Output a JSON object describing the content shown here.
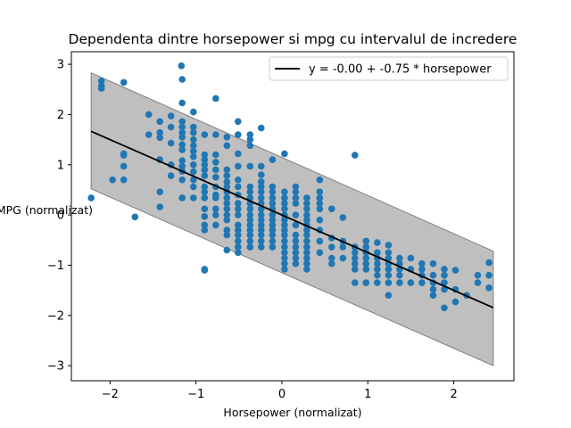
{
  "chart_data": {
    "type": "scatter",
    "title": "Dependenta dintre horsepower si mpg cu intervalul de incredere",
    "xlabel": "Horsepower (normalizat)",
    "ylabel": "MPG (normalizat)",
    "xlim": [
      -2.45,
      2.7
    ],
    "ylim": [
      -3.3,
      3.25
    ],
    "xticks": [
      -2,
      -1,
      0,
      1,
      2
    ],
    "yticks": [
      -3,
      -2,
      -1,
      0,
      1,
      2,
      3
    ],
    "xtick_labels": [
      "−2",
      "−1",
      "0",
      "1",
      "2"
    ],
    "ytick_labels": [
      "−3",
      "−2",
      "−1",
      "0",
      "1",
      "2",
      "3"
    ],
    "grid": false,
    "legend": {
      "placement": "top-right",
      "label": "y = -0.00 + -0.75 * horsepower"
    },
    "colors": {
      "points": "#1f77b4",
      "line": "#000000",
      "band": "#808080"
    },
    "regression": {
      "intercept": 0.0,
      "slope": -0.75,
      "x_range": [
        -2.22,
        2.46
      ]
    },
    "confidence_band": {
      "x": [
        -2.22,
        2.46
      ],
      "upper": [
        2.83,
        -0.72
      ],
      "lower": [
        0.52,
        -3.0
      ]
    },
    "points": [
      [
        -2.22,
        0.34
      ],
      [
        -2.1,
        2.67
      ],
      [
        -2.1,
        2.57
      ],
      [
        -2.1,
        2.52
      ],
      [
        -1.97,
        0.7
      ],
      [
        -1.84,
        2.64
      ],
      [
        -1.84,
        1.22
      ],
      [
        -1.84,
        1.19
      ],
      [
        -1.84,
        0.97
      ],
      [
        -1.84,
        0.7
      ],
      [
        -1.71,
        -0.04
      ],
      [
        -1.55,
        2.0
      ],
      [
        -1.55,
        1.6
      ],
      [
        -1.42,
        1.86
      ],
      [
        -1.42,
        1.64
      ],
      [
        -1.42,
        1.54
      ],
      [
        -1.42,
        1.1
      ],
      [
        -1.42,
        0.46
      ],
      [
        -1.42,
        0.16
      ],
      [
        -1.29,
        1.97
      ],
      [
        -1.29,
        1.75
      ],
      [
        -1.29,
        1.43
      ],
      [
        -1.29,
        1.0
      ],
      [
        -1.29,
        0.78
      ],
      [
        -1.17,
        2.97
      ],
      [
        -1.16,
        2.7
      ],
      [
        -1.16,
        2.23
      ],
      [
        -1.16,
        1.86
      ],
      [
        -1.16,
        1.75
      ],
      [
        -1.16,
        1.64
      ],
      [
        -1.16,
        1.55
      ],
      [
        -1.16,
        1.4
      ],
      [
        -1.16,
        1.3
      ],
      [
        -1.16,
        1.08
      ],
      [
        -1.16,
        0.97
      ],
      [
        -1.16,
        0.87
      ],
      [
        -1.16,
        0.7
      ],
      [
        -1.16,
        0.34
      ],
      [
        -1.03,
        2.05
      ],
      [
        -1.03,
        1.75
      ],
      [
        -1.03,
        1.64
      ],
      [
        -1.03,
        1.5
      ],
      [
        -1.03,
        1.38
      ],
      [
        -1.03,
        1.27
      ],
      [
        -1.03,
        1.16
      ],
      [
        -1.03,
        1.0
      ],
      [
        -1.03,
        0.86
      ],
      [
        -1.03,
        0.7
      ],
      [
        -1.03,
        0.56
      ],
      [
        -1.03,
        0.34
      ],
      [
        -0.9,
        1.6
      ],
      [
        -0.9,
        1.2
      ],
      [
        -0.9,
        1.1
      ],
      [
        -0.9,
        1.0
      ],
      [
        -0.9,
        0.9
      ],
      [
        -0.9,
        0.78
      ],
      [
        -0.9,
        0.56
      ],
      [
        -0.9,
        0.46
      ],
      [
        -0.9,
        0.34
      ],
      [
        -0.9,
        0.12
      ],
      [
        -0.9,
        -0.03
      ],
      [
        -0.9,
        -0.2
      ],
      [
        -0.9,
        -0.3
      ],
      [
        -0.9,
        -1.1
      ],
      [
        -0.9,
        -1.08
      ],
      [
        -0.77,
        2.32
      ],
      [
        -0.77,
        1.6
      ],
      [
        -0.77,
        1.2
      ],
      [
        -0.77,
        1.05
      ],
      [
        -0.77,
        0.9
      ],
      [
        -0.77,
        0.75
      ],
      [
        -0.77,
        0.56
      ],
      [
        -0.77,
        0.4
      ],
      [
        -0.77,
        0.34
      ],
      [
        -0.77,
        0.12
      ],
      [
        -0.77,
        0.0
      ],
      [
        -0.77,
        -0.2
      ],
      [
        -0.64,
        1.55
      ],
      [
        -0.64,
        1.38
      ],
      [
        -0.64,
        0.9
      ],
      [
        -0.64,
        0.78
      ],
      [
        -0.64,
        0.66
      ],
      [
        -0.64,
        0.56
      ],
      [
        -0.64,
        0.46
      ],
      [
        -0.64,
        0.34
      ],
      [
        -0.64,
        0.23
      ],
      [
        -0.64,
        0.12
      ],
      [
        -0.64,
        0.0
      ],
      [
        -0.64,
        -0.1
      ],
      [
        -0.64,
        -0.3
      ],
      [
        -0.64,
        -0.4
      ],
      [
        -0.64,
        -0.7
      ],
      [
        -0.51,
        1.86
      ],
      [
        -0.51,
        1.6
      ],
      [
        -0.51,
        1.22
      ],
      [
        -0.51,
        0.97
      ],
      [
        -0.51,
        0.7
      ],
      [
        -0.51,
        0.56
      ],
      [
        -0.51,
        0.4
      ],
      [
        -0.51,
        0.23
      ],
      [
        -0.51,
        0.12
      ],
      [
        -0.51,
        0.0
      ],
      [
        -0.51,
        -0.2
      ],
      [
        -0.51,
        -0.3
      ],
      [
        -0.51,
        -0.4
      ],
      [
        -0.51,
        -0.52
      ],
      [
        -0.51,
        -0.64
      ],
      [
        -0.51,
        -0.75
      ],
      [
        -0.37,
        1.6
      ],
      [
        -0.37,
        1.5
      ],
      [
        -0.37,
        1.38
      ],
      [
        -0.37,
        0.97
      ],
      [
        -0.37,
        0.56
      ],
      [
        -0.37,
        0.46
      ],
      [
        -0.37,
        0.34
      ],
      [
        -0.37,
        0.23
      ],
      [
        -0.37,
        0.12
      ],
      [
        -0.37,
        0.0
      ],
      [
        -0.37,
        -0.1
      ],
      [
        -0.37,
        -0.2
      ],
      [
        -0.37,
        -0.3
      ],
      [
        -0.37,
        -0.4
      ],
      [
        -0.37,
        -0.52
      ],
      [
        -0.37,
        -0.64
      ],
      [
        -0.24,
        1.73
      ],
      [
        -0.24,
        0.97
      ],
      [
        -0.24,
        0.8
      ],
      [
        -0.24,
        0.66
      ],
      [
        -0.24,
        0.56
      ],
      [
        -0.24,
        0.46
      ],
      [
        -0.24,
        0.34
      ],
      [
        -0.24,
        0.23
      ],
      [
        -0.24,
        0.12
      ],
      [
        -0.24,
        0.0
      ],
      [
        -0.24,
        -0.1
      ],
      [
        -0.24,
        -0.2
      ],
      [
        -0.24,
        -0.3
      ],
      [
        -0.24,
        -0.4
      ],
      [
        -0.24,
        -0.52
      ],
      [
        -0.24,
        -0.64
      ],
      [
        -0.11,
        1.1
      ],
      [
        -0.11,
        0.56
      ],
      [
        -0.11,
        0.46
      ],
      [
        -0.11,
        0.34
      ],
      [
        -0.11,
        0.23
      ],
      [
        -0.11,
        0.12
      ],
      [
        -0.11,
        0.0
      ],
      [
        -0.11,
        -0.1
      ],
      [
        -0.11,
        -0.2
      ],
      [
        -0.11,
        -0.3
      ],
      [
        -0.11,
        -0.4
      ],
      [
        -0.11,
        -0.52
      ],
      [
        -0.11,
        -0.64
      ],
      [
        0.03,
        1.22
      ],
      [
        0.03,
        0.46
      ],
      [
        0.03,
        0.34
      ],
      [
        0.03,
        0.23
      ],
      [
        0.03,
        0.12
      ],
      [
        0.03,
        0.0
      ],
      [
        0.03,
        -0.1
      ],
      [
        0.03,
        -0.2
      ],
      [
        0.03,
        -0.3
      ],
      [
        0.03,
        -0.4
      ],
      [
        0.03,
        -0.52
      ],
      [
        0.03,
        -0.64
      ],
      [
        0.03,
        -0.75
      ],
      [
        0.03,
        -0.86
      ],
      [
        0.03,
        -0.97
      ],
      [
        0.03,
        -1.08
      ],
      [
        0.16,
        0.56
      ],
      [
        0.16,
        0.46
      ],
      [
        0.16,
        0.34
      ],
      [
        0.16,
        0.23
      ],
      [
        0.16,
        0.0
      ],
      [
        0.16,
        -0.2
      ],
      [
        0.16,
        -0.4
      ],
      [
        0.16,
        -0.52
      ],
      [
        0.16,
        -0.64
      ],
      [
        0.16,
        -0.75
      ],
      [
        0.16,
        -0.86
      ],
      [
        0.16,
        -0.97
      ],
      [
        0.29,
        0.34
      ],
      [
        0.29,
        0.23
      ],
      [
        0.29,
        0.12
      ],
      [
        0.29,
        0.0
      ],
      [
        0.29,
        -0.1
      ],
      [
        0.29,
        -0.2
      ],
      [
        0.29,
        -0.3
      ],
      [
        0.29,
        -0.4
      ],
      [
        0.29,
        -0.52
      ],
      [
        0.29,
        -0.64
      ],
      [
        0.29,
        -0.75
      ],
      [
        0.29,
        -0.86
      ],
      [
        0.29,
        -0.97
      ],
      [
        0.29,
        -1.08
      ],
      [
        0.44,
        0.7
      ],
      [
        0.44,
        0.46
      ],
      [
        0.44,
        0.34
      ],
      [
        0.44,
        0.23
      ],
      [
        0.44,
        0.12
      ],
      [
        0.44,
        -0.1
      ],
      [
        0.44,
        -0.3
      ],
      [
        0.44,
        -0.52
      ],
      [
        0.44,
        -0.75
      ],
      [
        0.58,
        0.12
      ],
      [
        0.58,
        -0.46
      ],
      [
        0.58,
        -0.64
      ],
      [
        0.58,
        -0.86
      ],
      [
        0.58,
        -0.97
      ],
      [
        0.71,
        -0.05
      ],
      [
        0.71,
        -0.52
      ],
      [
        0.71,
        -0.64
      ],
      [
        0.71,
        -0.86
      ],
      [
        0.85,
        1.19
      ],
      [
        0.85,
        -0.64
      ],
      [
        0.85,
        -0.75
      ],
      [
        0.85,
        -0.86
      ],
      [
        0.85,
        -0.97
      ],
      [
        0.85,
        -1.08
      ],
      [
        0.85,
        -1.35
      ],
      [
        0.98,
        -0.52
      ],
      [
        0.98,
        -0.64
      ],
      [
        0.98,
        -0.75
      ],
      [
        0.98,
        -0.86
      ],
      [
        0.98,
        -0.97
      ],
      [
        0.98,
        -1.08
      ],
      [
        0.98,
        -1.35
      ],
      [
        1.11,
        -0.55
      ],
      [
        1.11,
        -0.75
      ],
      [
        1.11,
        -0.86
      ],
      [
        1.11,
        -0.97
      ],
      [
        1.11,
        -1.08
      ],
      [
        1.11,
        -1.2
      ],
      [
        1.11,
        -1.35
      ],
      [
        1.24,
        -0.6
      ],
      [
        1.24,
        -0.75
      ],
      [
        1.24,
        -0.86
      ],
      [
        1.24,
        -0.97
      ],
      [
        1.24,
        -1.08
      ],
      [
        1.24,
        -1.2
      ],
      [
        1.24,
        -1.35
      ],
      [
        1.24,
        -1.6
      ],
      [
        1.37,
        -0.86
      ],
      [
        1.37,
        -0.97
      ],
      [
        1.37,
        -1.08
      ],
      [
        1.37,
        -1.2
      ],
      [
        1.37,
        -1.35
      ],
      [
        1.5,
        -0.86
      ],
      [
        1.5,
        -1.08
      ],
      [
        1.5,
        -1.35
      ],
      [
        1.63,
        -0.97
      ],
      [
        1.63,
        -1.08
      ],
      [
        1.63,
        -1.2
      ],
      [
        1.63,
        -1.35
      ],
      [
        1.76,
        -0.97
      ],
      [
        1.76,
        -1.2
      ],
      [
        1.76,
        -1.35
      ],
      [
        1.76,
        -1.48
      ],
      [
        1.76,
        -1.6
      ],
      [
        1.89,
        -1.08
      ],
      [
        1.89,
        -1.2
      ],
      [
        1.89,
        -1.35
      ],
      [
        1.89,
        -1.48
      ],
      [
        1.89,
        -1.85
      ],
      [
        2.02,
        -1.1
      ],
      [
        2.02,
        -1.48
      ],
      [
        2.02,
        -1.73
      ],
      [
        2.15,
        -1.6
      ],
      [
        2.28,
        -1.2
      ],
      [
        2.28,
        -1.35
      ],
      [
        2.41,
        -0.95
      ],
      [
        2.41,
        -1.2
      ],
      [
        2.41,
        -1.45
      ]
    ]
  }
}
